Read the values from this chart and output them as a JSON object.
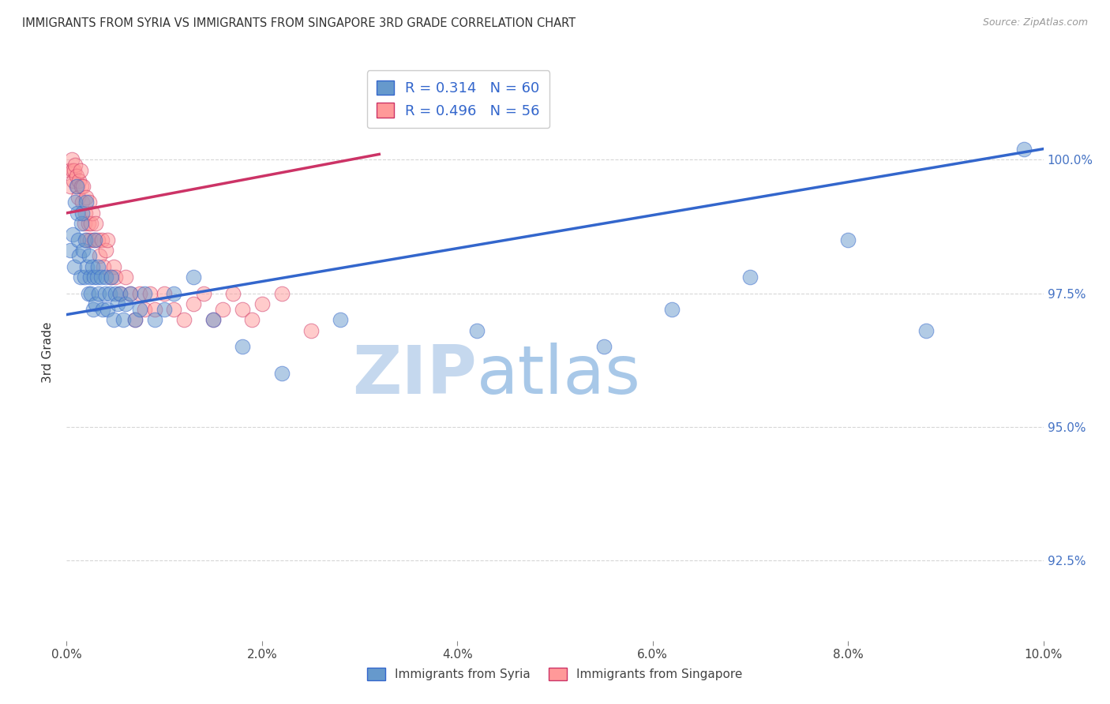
{
  "title": "IMMIGRANTS FROM SYRIA VS IMMIGRANTS FROM SINGAPORE 3RD GRADE CORRELATION CHART",
  "source": "Source: ZipAtlas.com",
  "ylabel": "3rd Grade",
  "x_min": 0.0,
  "x_max": 10.0,
  "y_min": 91.0,
  "y_max": 101.8,
  "x_tick_labels": [
    "0.0%",
    "2.0%",
    "4.0%",
    "6.0%",
    "8.0%",
    "10.0%"
  ],
  "x_tick_vals": [
    0,
    2,
    4,
    6,
    8,
    10
  ],
  "y_tick_labels": [
    "92.5%",
    "95.0%",
    "97.5%",
    "100.0%"
  ],
  "y_tick_vals": [
    92.5,
    95.0,
    97.5,
    100.0
  ],
  "legend_label_blue": "Immigrants from Syria",
  "legend_label_pink": "Immigrants from Singapore",
  "R_blue": "0.314",
  "N_blue": "60",
  "R_pink": "0.496",
  "N_pink": "56",
  "color_blue": "#6699CC",
  "color_pink": "#FF9999",
  "line_color_blue": "#3366CC",
  "line_color_pink": "#CC3366",
  "watermark_zip": "ZIP",
  "watermark_atlas": "atlas",
  "watermark_color_zip": "#C5D8EE",
  "watermark_color_atlas": "#A8C8E8",
  "blue_x": [
    0.04,
    0.06,
    0.08,
    0.09,
    0.1,
    0.11,
    0.12,
    0.13,
    0.14,
    0.15,
    0.16,
    0.17,
    0.18,
    0.19,
    0.2,
    0.21,
    0.22,
    0.23,
    0.24,
    0.25,
    0.26,
    0.27,
    0.28,
    0.29,
    0.3,
    0.31,
    0.32,
    0.33,
    0.35,
    0.37,
    0.39,
    0.4,
    0.42,
    0.44,
    0.46,
    0.48,
    0.5,
    0.52,
    0.55,
    0.58,
    0.6,
    0.65,
    0.7,
    0.75,
    0.8,
    0.9,
    1.0,
    1.1,
    1.3,
    1.5,
    1.8,
    2.2,
    2.8,
    4.2,
    5.5,
    6.2,
    7.0,
    8.0,
    8.8,
    9.8
  ],
  "blue_y": [
    98.3,
    98.6,
    98.0,
    99.2,
    99.5,
    99.0,
    98.5,
    98.2,
    97.8,
    98.8,
    99.0,
    98.3,
    97.8,
    98.5,
    99.2,
    98.0,
    97.5,
    98.2,
    97.8,
    97.5,
    98.0,
    97.2,
    97.8,
    98.5,
    97.3,
    97.8,
    98.0,
    97.5,
    97.8,
    97.2,
    97.5,
    97.8,
    97.2,
    97.5,
    97.8,
    97.0,
    97.5,
    97.3,
    97.5,
    97.0,
    97.3,
    97.5,
    97.0,
    97.2,
    97.5,
    97.0,
    97.2,
    97.5,
    97.8,
    97.0,
    96.5,
    96.0,
    97.0,
    96.8,
    96.5,
    97.2,
    97.8,
    98.5,
    96.8,
    100.2
  ],
  "pink_x": [
    0.03,
    0.04,
    0.05,
    0.06,
    0.07,
    0.08,
    0.09,
    0.1,
    0.11,
    0.12,
    0.13,
    0.14,
    0.15,
    0.16,
    0.17,
    0.18,
    0.19,
    0.2,
    0.21,
    0.22,
    0.23,
    0.24,
    0.25,
    0.26,
    0.28,
    0.3,
    0.32,
    0.34,
    0.36,
    0.38,
    0.4,
    0.42,
    0.45,
    0.48,
    0.5,
    0.55,
    0.6,
    0.65,
    0.7,
    0.75,
    0.8,
    0.85,
    0.9,
    1.0,
    1.1,
    1.2,
    1.3,
    1.4,
    1.5,
    1.6,
    1.7,
    1.8,
    1.9,
    2.0,
    2.2,
    2.5
  ],
  "pink_y": [
    99.8,
    99.5,
    100.0,
    99.8,
    99.6,
    99.8,
    99.9,
    99.7,
    99.5,
    99.3,
    99.6,
    99.8,
    99.5,
    99.2,
    99.5,
    98.8,
    99.0,
    99.3,
    98.5,
    98.8,
    99.2,
    98.5,
    98.8,
    99.0,
    98.5,
    98.8,
    98.5,
    98.2,
    98.5,
    98.0,
    98.3,
    98.5,
    97.8,
    98.0,
    97.8,
    97.5,
    97.8,
    97.5,
    97.0,
    97.5,
    97.2,
    97.5,
    97.2,
    97.5,
    97.2,
    97.0,
    97.3,
    97.5,
    97.0,
    97.2,
    97.5,
    97.2,
    97.0,
    97.3,
    97.5,
    96.8
  ],
  "blue_trend_x": [
    0.0,
    10.0
  ],
  "blue_trend_y": [
    97.1,
    100.2
  ],
  "pink_trend_x": [
    0.0,
    3.2
  ],
  "pink_trend_y": [
    99.0,
    100.1
  ]
}
